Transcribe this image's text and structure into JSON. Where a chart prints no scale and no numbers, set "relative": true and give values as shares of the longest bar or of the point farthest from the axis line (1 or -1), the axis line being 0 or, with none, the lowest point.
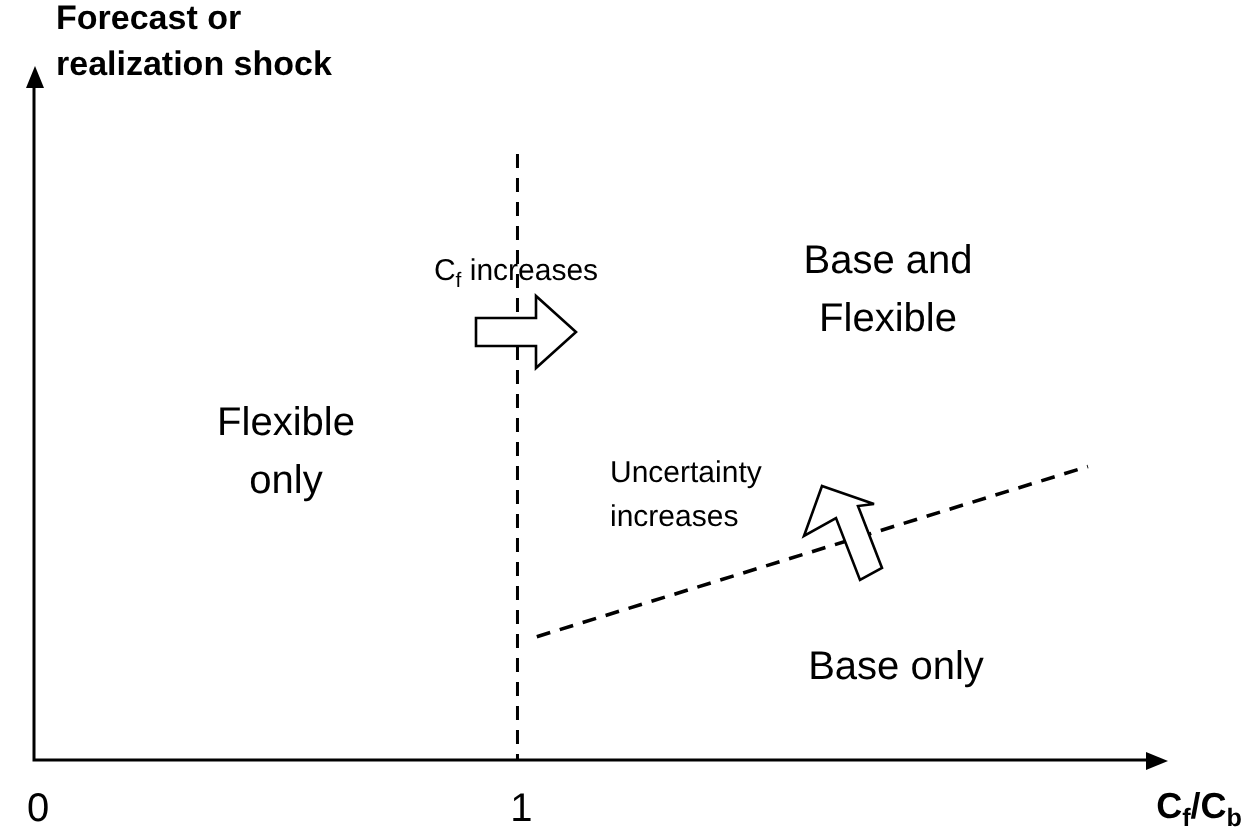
{
  "chart_data": {
    "type": "line",
    "relative": true,
    "xlabel": "C$_{f}$/C$_{b}$",
    "xlim": [
      0,
      2.3
    ],
    "xticks": [
      0,
      1
    ],
    "series": [
      {
        "color": "#000000",
        "x": [
          1.04,
          2.18
        ],
        "values": [
          0.42,
          1
        ],
        "line_style": "dashed"
      }
    ],
    "ref_lines": [
      {
        "axis": "x",
        "value": 1,
        "color": "#000000",
        "line_style": "dashed"
      }
    ],
    "annotations": [
      "Flexible only",
      "Base and Flexible",
      "Base only",
      "C$_{f}$ increases",
      "Uncertainty increases",
      "Forecast or realization shock"
    ],
    "marker": "none",
    "legend": false
  }
}
